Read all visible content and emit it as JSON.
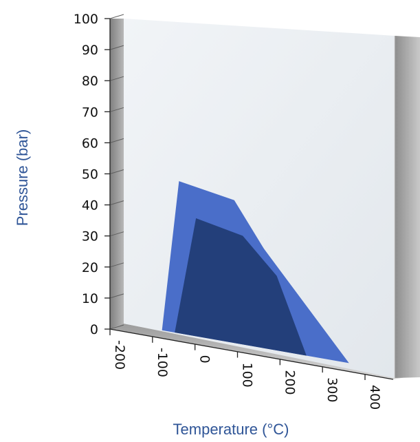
{
  "chart_data": {
    "type": "area",
    "title": "",
    "xlabel": "Temperature (°C)",
    "ylabel": "Pressure (bar)",
    "xlim": [
      -200,
      400
    ],
    "ylim": [
      0,
      100
    ],
    "x_ticks": [
      "-200",
      "-100",
      "0",
      "100",
      "200",
      "300",
      "400"
    ],
    "y_ticks": [
      "0",
      "10",
      "20",
      "30",
      "40",
      "50",
      "60",
      "70",
      "80",
      "90",
      "100"
    ],
    "grid": false,
    "series": [
      {
        "color": "#4a6ec9",
        "points": [
          [
            -110,
            0
          ],
          [
            -70,
            49
          ],
          [
            60,
            46
          ],
          [
            130,
            32
          ],
          [
            330,
            0
          ]
        ]
      },
      {
        "color": "#233f7a",
        "points": [
          [
            -80,
            0
          ],
          [
            -30,
            38
          ],
          [
            80,
            35
          ],
          [
            160,
            24
          ],
          [
            230,
            0
          ]
        ]
      }
    ],
    "colors": {
      "plot_wall": "#e8edf2",
      "side_wall": "#9a9a9a",
      "floor": "#c4c4c4",
      "axis_title": "#2f5597"
    }
  }
}
